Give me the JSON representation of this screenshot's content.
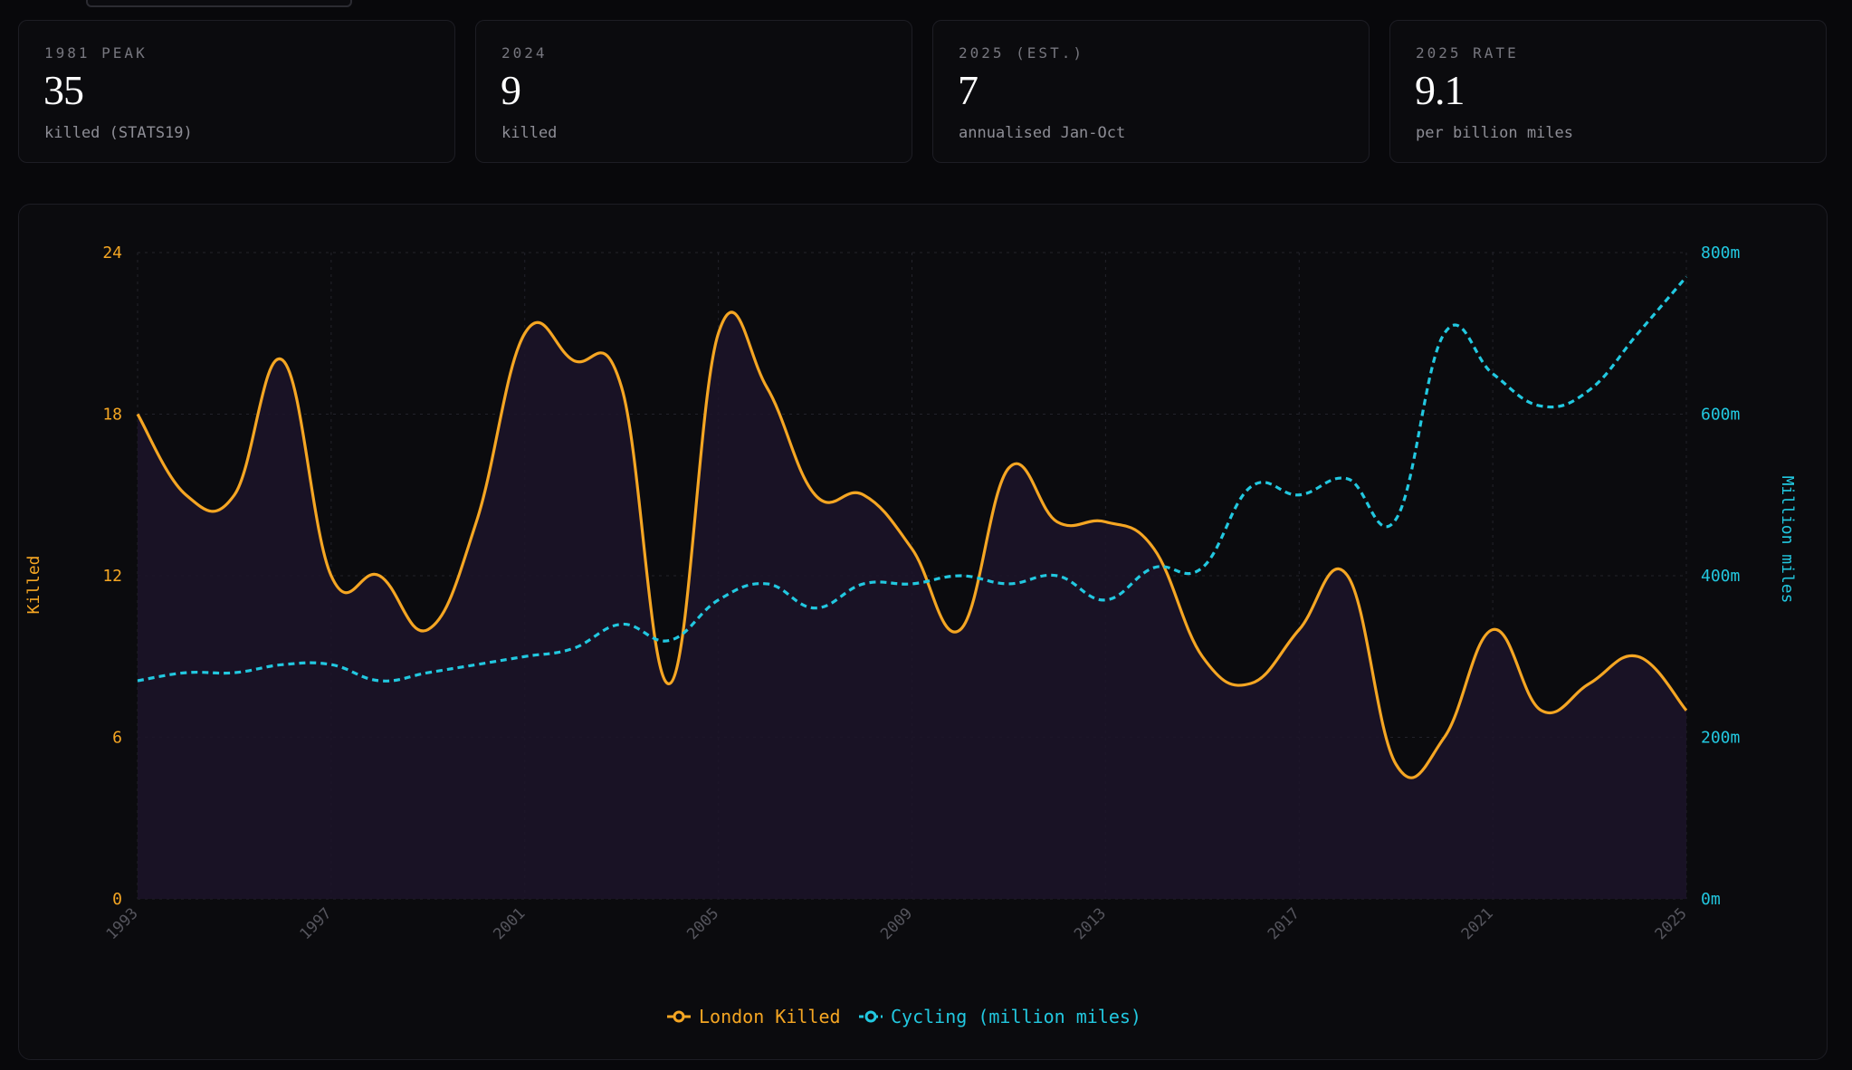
{
  "cards": [
    {
      "label": "1981 PEAK",
      "value": "35",
      "sub": "killed (STATS19)"
    },
    {
      "label": "2024",
      "value": "9",
      "sub": "killed"
    },
    {
      "label": "2025 (EST.)",
      "value": "7",
      "sub": "annualised Jan-Oct"
    },
    {
      "label": "2025 RATE",
      "value": "9.1",
      "sub": "per billion miles"
    }
  ],
  "colors": {
    "killed": "#f5a623",
    "cycling": "#22c8e0",
    "area_fill": "#1c1429",
    "grid": "#23232b",
    "tick": "#55555d"
  },
  "chart_data": {
    "type": "line",
    "title": "",
    "xlabel": "",
    "ylabel": "Killed",
    "y2label": "Million miles",
    "x": [
      1993,
      1994,
      1995,
      1996,
      1997,
      1998,
      1999,
      2000,
      2001,
      2002,
      2003,
      2004,
      2005,
      2006,
      2007,
      2008,
      2009,
      2010,
      2011,
      2012,
      2013,
      2014,
      2015,
      2016,
      2017,
      2018,
      2019,
      2020,
      2021,
      2022,
      2023,
      2024,
      2025
    ],
    "x_tick_labels": [
      "1993",
      "1997",
      "2001",
      "2005",
      "2009",
      "2013",
      "2017",
      "2021",
      "2025"
    ],
    "ylim": [
      0,
      24
    ],
    "y_ticks": [
      "0",
      "6",
      "12",
      "18",
      "24"
    ],
    "y2lim": [
      0,
      800
    ],
    "y2_ticks": [
      "0m",
      "200m",
      "400m",
      "600m",
      "800m"
    ],
    "grid": true,
    "legend_position": "bottom-center",
    "series": [
      {
        "name": "London Killed",
        "axis": "left",
        "style": "solid",
        "values": [
          18,
          15,
          15,
          20,
          12,
          12,
          10,
          14,
          21,
          20,
          19,
          8,
          21,
          19,
          15,
          15,
          13,
          10,
          16,
          14,
          14,
          13,
          9,
          8,
          10,
          12,
          5,
          6,
          10,
          7,
          8,
          9,
          7
        ]
      },
      {
        "name": "Cycling (million miles)",
        "axis": "right",
        "style": "dashed",
        "values": [
          270,
          280,
          280,
          290,
          290,
          270,
          280,
          290,
          300,
          310,
          340,
          320,
          370,
          390,
          360,
          390,
          390,
          400,
          390,
          400,
          370,
          410,
          410,
          510,
          500,
          520,
          470,
          700,
          650,
          610,
          630,
          700,
          770
        ]
      }
    ]
  }
}
